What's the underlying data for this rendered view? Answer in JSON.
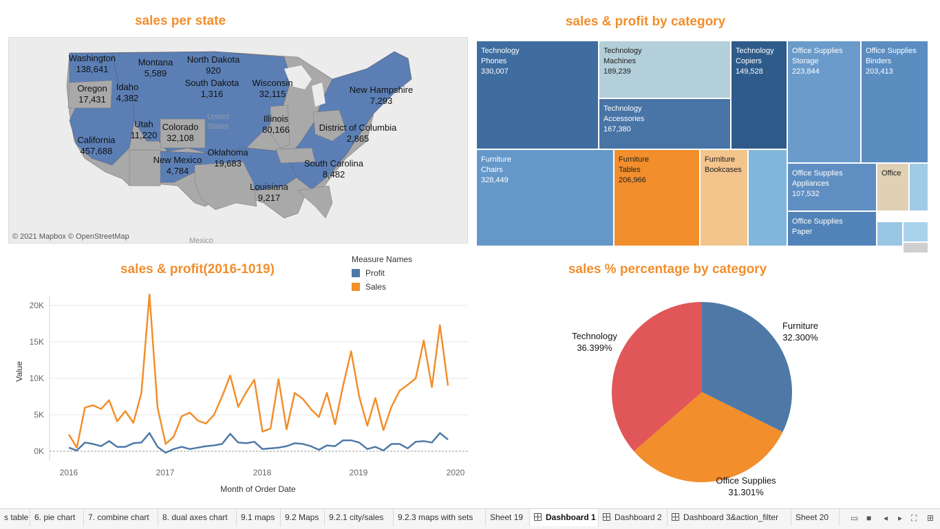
{
  "colors": {
    "title": "#f28e2b",
    "profit": "#4e79a7",
    "sales": "#f28e2b",
    "map_fill": "#5b7fb5",
    "map_gray": "#a9a9a9"
  },
  "map": {
    "title": "sales per state",
    "attribution": "© 2021 Mapbox © OpenStreetMap",
    "places": [
      "United States",
      "Mexico"
    ],
    "states": [
      {
        "name": "Washington",
        "value": "138,641"
      },
      {
        "name": "Oregon",
        "value": "17,431"
      },
      {
        "name": "Idaho",
        "value": "4,382"
      },
      {
        "name": "Montana",
        "value": "5,589"
      },
      {
        "name": "North Dakota",
        "value": "920"
      },
      {
        "name": "South Dakota",
        "value": "1,316"
      },
      {
        "name": "Wisconsin",
        "value": "32,115"
      },
      {
        "name": "New Hampshire",
        "value": "7,293"
      },
      {
        "name": "Utah",
        "value": "11,220"
      },
      {
        "name": "Colorado",
        "value": "32,108"
      },
      {
        "name": "California",
        "value": "457,688"
      },
      {
        "name": "Illinois",
        "value": "80,166"
      },
      {
        "name": "District of Columbia",
        "value": "2,865"
      },
      {
        "name": "New Mexico",
        "value": "4,784"
      },
      {
        "name": "Oklahoma",
        "value": "19,683"
      },
      {
        "name": "South Carolina",
        "value": "8,482"
      },
      {
        "name": "Louisiana",
        "value": "9,217"
      }
    ]
  },
  "treemap": {
    "title": "sales & profit by category",
    "tiles": [
      {
        "cat": "Technology",
        "sub": "Phones",
        "val": "330,007",
        "color": "#3f6d9f"
      },
      {
        "cat": "Technology",
        "sub": "Machines",
        "val": "189,239",
        "color": "#b3cfda"
      },
      {
        "cat": "Technology",
        "sub": "Copiers",
        "val": "149,528",
        "color": "#2e5b8a"
      },
      {
        "cat": "Technology",
        "sub": "Accessories",
        "val": "167,380",
        "color": "#4874a6"
      },
      {
        "cat": "Office Supplies",
        "sub": "Storage",
        "val": "223,844",
        "color": "#6a9bcb"
      },
      {
        "cat": "Office Supplies",
        "sub": "Binders",
        "val": "203,413",
        "color": "#5b8dc1"
      },
      {
        "cat": "Furniture",
        "sub": "Chairs",
        "val": "328,449",
        "color": "#6598c9"
      },
      {
        "cat": "Furniture",
        "sub": "Tables",
        "val": "206,966",
        "color": "#f28e2b"
      },
      {
        "cat": "Furniture",
        "sub": "Bookcases",
        "val": "",
        "color": "#f3c48c"
      },
      {
        "cat": "",
        "sub": "",
        "val": "",
        "color": "#82b7dd"
      },
      {
        "cat": "Office Supplies",
        "sub": "Appliances",
        "val": "107,532",
        "color": "#5f8fc2"
      },
      {
        "cat": "Office",
        "sub": "",
        "val": "",
        "color": "#e0d0b4"
      },
      {
        "cat": "",
        "sub": "",
        "val": "",
        "color": "#9fcbe6"
      },
      {
        "cat": "Office Supplies",
        "sub": "Paper",
        "val": "",
        "color": "#5283b8"
      },
      {
        "cat": "",
        "sub": "",
        "val": "",
        "color": "#98c7e4"
      },
      {
        "cat": "",
        "sub": "",
        "val": "",
        "color": "#a9d3ec"
      },
      {
        "cat": "",
        "sub": "",
        "val": "",
        "color": "#cfcfcf"
      }
    ]
  },
  "line": {
    "title": "sales & profit(2016-1019)",
    "legend_title": "Measure Names",
    "legend": [
      "Profit",
      "Sales"
    ]
  },
  "pie": {
    "title": "sales % percentage by category"
  },
  "chart_data": [
    {
      "type": "line",
      "title": "sales & profit(2016-1019)",
      "xlabel": "Month of Order Date",
      "ylabel": "Value",
      "x_ticks": [
        "2016",
        "2017",
        "2018",
        "2019",
        "2020"
      ],
      "y_ticks": [
        "0K",
        "5K",
        "10K",
        "15K",
        "20K"
      ],
      "ylim": [
        0,
        22000
      ],
      "x_start": "2016-01",
      "series": [
        {
          "name": "Sales",
          "values": [
            2300,
            500,
            6000,
            6300,
            5800,
            7000,
            4100,
            5500,
            3900,
            8000,
            21500,
            6000,
            1000,
            2000,
            4800,
            5300,
            4200,
            3800,
            5000,
            7500,
            10400,
            6100,
            8100,
            9800,
            2700,
            3100,
            9900,
            3000,
            8000,
            7200,
            5800,
            4700,
            8000,
            3700,
            9000,
            13700,
            7500,
            3500,
            7300,
            2900,
            6100,
            8300,
            9100,
            10000,
            15200,
            8800,
            17300,
            9000
          ]
        },
        {
          "name": "Profit",
          "values": [
            500,
            100,
            1200,
            1000,
            700,
            1400,
            600,
            600,
            1100,
            1200,
            2500,
            600,
            -200,
            300,
            600,
            300,
            500,
            700,
            800,
            1000,
            2400,
            1200,
            1100,
            1300,
            300,
            400,
            500,
            700,
            1100,
            1000,
            700,
            200,
            800,
            700,
            1500,
            1500,
            1200,
            300,
            600,
            100,
            1000,
            1000,
            400,
            1300,
            1400,
            1200,
            2500,
            1600
          ]
        }
      ]
    },
    {
      "type": "pie",
      "title": "sales % percentage by category",
      "categories": [
        "Furniture",
        "Office Supplies",
        "Technology"
      ],
      "values": [
        32.3,
        31.301,
        36.399
      ],
      "labels": [
        "32.300%",
        "31.301%",
        "36.399%"
      ],
      "colors": [
        "#4e79a7",
        "#f28e2b",
        "#e15759"
      ]
    }
  ],
  "tabs": [
    {
      "label": "s table",
      "bar": "#2aa37f"
    },
    {
      "label": "6. pie chart",
      "bar": "#2aa37f"
    },
    {
      "label": "7. combine chart",
      "bar": "#e76f7a"
    },
    {
      "label": "8. dual axes chart",
      "bar": "#e76f7a"
    },
    {
      "label": "9.1 maps",
      "bar": "#dcc27a"
    },
    {
      "label": "9.2 Maps",
      "bar": "#dcc27a"
    },
    {
      "label": "9.2.1 city/sales",
      "bar": "#dcc27a"
    },
    {
      "label": "9.2.3 maps with sets",
      "bar": "#dcc27a"
    },
    {
      "label": "Sheet 19",
      "bar": ""
    },
    {
      "label": "Dashboard 1",
      "bar": "",
      "active": true,
      "icon": true
    },
    {
      "label": "Dashboard 2",
      "bar": "",
      "icon": true
    },
    {
      "label": "Dashboard 3&action_filter",
      "bar": "",
      "icon": true
    },
    {
      "label": "Sheet 20",
      "bar": ""
    }
  ]
}
